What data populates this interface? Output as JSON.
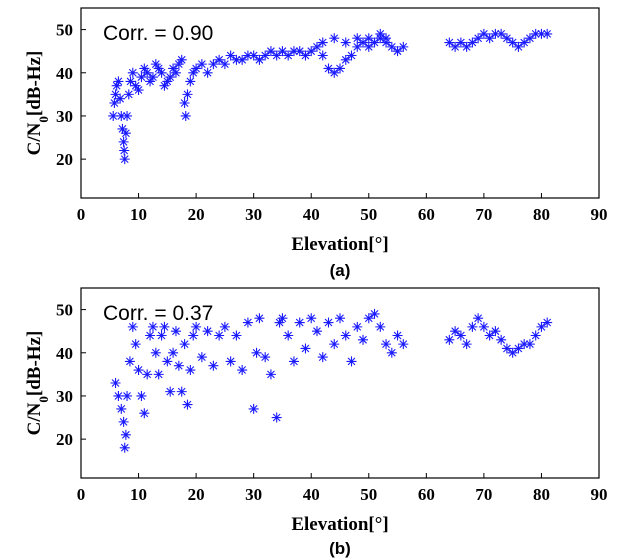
{
  "chart_data": [
    {
      "type": "scatter",
      "panel_label": "(a)",
      "annotation": "Corr. = 0.90",
      "xlabel": "Elevation[°]",
      "ylabel_main": "C/N",
      "ylabel_sub": "0",
      "ylabel_tail": "[dB-Hz]",
      "xlim": [
        0,
        90
      ],
      "ylim": [
        11,
        55
      ],
      "xticks": [
        0,
        10,
        20,
        30,
        40,
        50,
        60,
        70,
        80,
        90
      ],
      "yticks": [
        20,
        30,
        40,
        50
      ],
      "marker": "asterisk",
      "color": "#1a1aff",
      "points": [
        [
          5.6,
          30
        ],
        [
          5.8,
          33
        ],
        [
          6,
          35
        ],
        [
          6.2,
          37
        ],
        [
          6.5,
          38
        ],
        [
          6.8,
          34
        ],
        [
          7,
          30
        ],
        [
          7.2,
          27
        ],
        [
          7.4,
          24
        ],
        [
          7.5,
          22
        ],
        [
          7.6,
          20
        ],
        [
          7.8,
          26
        ],
        [
          8,
          30
        ],
        [
          8.3,
          35
        ],
        [
          8.6,
          38
        ],
        [
          9,
          40
        ],
        [
          9.5,
          37
        ],
        [
          10,
          36
        ],
        [
          10.5,
          39
        ],
        [
          11,
          41
        ],
        [
          11.5,
          40
        ],
        [
          12,
          38
        ],
        [
          12.5,
          39
        ],
        [
          13,
          42
        ],
        [
          13.5,
          41
        ],
        [
          14,
          40
        ],
        [
          14.5,
          37
        ],
        [
          15,
          38
        ],
        [
          15.5,
          39
        ],
        [
          16,
          41
        ],
        [
          16.5,
          40
        ],
        [
          17,
          42
        ],
        [
          17.5,
          43
        ],
        [
          18,
          33
        ],
        [
          18.2,
          30
        ],
        [
          18.5,
          35
        ],
        [
          19,
          38
        ],
        [
          19.5,
          40
        ],
        [
          20,
          41
        ],
        [
          21,
          42
        ],
        [
          22,
          40
        ],
        [
          23,
          42
        ],
        [
          24,
          43
        ],
        [
          25,
          42
        ],
        [
          26,
          44
        ],
        [
          27,
          43
        ],
        [
          28,
          43
        ],
        [
          29,
          44
        ],
        [
          30,
          44
        ],
        [
          31,
          43
        ],
        [
          32,
          44
        ],
        [
          33,
          45
        ],
        [
          34,
          44
        ],
        [
          35,
          45
        ],
        [
          36,
          44
        ],
        [
          37,
          45
        ],
        [
          38,
          45
        ],
        [
          39,
          44
        ],
        [
          40,
          45
        ],
        [
          41,
          46
        ],
        [
          42,
          44
        ],
        [
          43,
          41
        ],
        [
          44,
          40
        ],
        [
          45,
          41
        ],
        [
          46,
          43
        ],
        [
          47,
          44
        ],
        [
          48,
          46
        ],
        [
          49,
          47
        ],
        [
          50,
          46
        ],
        [
          51,
          47
        ],
        [
          52,
          48
        ],
        [
          53,
          47
        ],
        [
          54,
          46
        ],
        [
          55,
          45
        ],
        [
          56,
          46
        ],
        [
          42,
          47
        ],
        [
          44,
          48
        ],
        [
          46,
          47
        ],
        [
          48,
          48
        ],
        [
          50,
          48
        ],
        [
          52,
          49
        ],
        [
          53,
          48
        ],
        [
          64,
          47
        ],
        [
          65,
          46
        ],
        [
          66,
          47
        ],
        [
          67,
          46
        ],
        [
          68,
          47
        ],
        [
          69,
          48
        ],
        [
          70,
          49
        ],
        [
          71,
          48
        ],
        [
          72,
          49
        ],
        [
          73,
          49
        ],
        [
          74,
          48
        ],
        [
          75,
          47
        ],
        [
          76,
          46
        ],
        [
          77,
          47
        ],
        [
          78,
          48
        ],
        [
          79,
          49
        ],
        [
          80,
          49
        ],
        [
          81,
          49
        ]
      ]
    },
    {
      "type": "scatter",
      "panel_label": "(b)",
      "annotation": "Corr. = 0.37",
      "xlabel": "Elevation[°]",
      "ylabel_main": "C/N",
      "ylabel_sub": "0",
      "ylabel_tail": "[dB-Hz]",
      "xlim": [
        0,
        90
      ],
      "ylim": [
        11,
        55
      ],
      "xticks": [
        0,
        10,
        20,
        30,
        40,
        50,
        60,
        70,
        80,
        90
      ],
      "yticks": [
        20,
        30,
        40,
        50
      ],
      "marker": "asterisk",
      "color": "#1a1aff",
      "points": [
        [
          6,
          33
        ],
        [
          6.5,
          30
        ],
        [
          7,
          27
        ],
        [
          7.4,
          24
        ],
        [
          7.6,
          18
        ],
        [
          7.8,
          21
        ],
        [
          8,
          30
        ],
        [
          8.5,
          38
        ],
        [
          9,
          46
        ],
        [
          9.5,
          42
        ],
        [
          10,
          36
        ],
        [
          10.5,
          30
        ],
        [
          11,
          26
        ],
        [
          11.5,
          35
        ],
        [
          12,
          44
        ],
        [
          12.5,
          46
        ],
        [
          13,
          40
        ],
        [
          13.5,
          35
        ],
        [
          14,
          44
        ],
        [
          14.5,
          46
        ],
        [
          15,
          38
        ],
        [
          15.5,
          31
        ],
        [
          16,
          40
        ],
        [
          16.5,
          45
        ],
        [
          17,
          37
        ],
        [
          17.5,
          31
        ],
        [
          18,
          42
        ],
        [
          18.5,
          28
        ],
        [
          19,
          36
        ],
        [
          19.5,
          44
        ],
        [
          20,
          46
        ],
        [
          21,
          39
        ],
        [
          22,
          45
        ],
        [
          23,
          37
        ],
        [
          24,
          44
        ],
        [
          25,
          46
        ],
        [
          26,
          38
        ],
        [
          27,
          44
        ],
        [
          28,
          36
        ],
        [
          29,
          47
        ],
        [
          30,
          27
        ],
        [
          30.5,
          40
        ],
        [
          31,
          48
        ],
        [
          32,
          39
        ],
        [
          33,
          35
        ],
        [
          34,
          25
        ],
        [
          34.5,
          47
        ],
        [
          35,
          48
        ],
        [
          36,
          44
        ],
        [
          37,
          38
        ],
        [
          38,
          47
        ],
        [
          39,
          41
        ],
        [
          40,
          48
        ],
        [
          41,
          45
        ],
        [
          42,
          39
        ],
        [
          43,
          47
        ],
        [
          44,
          42
        ],
        [
          45,
          48
        ],
        [
          46,
          44
        ],
        [
          47,
          38
        ],
        [
          48,
          46
        ],
        [
          49,
          43
        ],
        [
          50,
          48
        ],
        [
          51,
          49
        ],
        [
          52,
          46
        ],
        [
          53,
          42
        ],
        [
          54,
          40
        ],
        [
          55,
          44
        ],
        [
          56,
          42
        ],
        [
          64,
          43
        ],
        [
          65,
          45
        ],
        [
          66,
          44
        ],
        [
          67,
          42
        ],
        [
          68,
          46
        ],
        [
          69,
          48
        ],
        [
          70,
          46
        ],
        [
          71,
          44
        ],
        [
          72,
          45
        ],
        [
          73,
          43
        ],
        [
          74,
          41
        ],
        [
          75,
          40
        ],
        [
          76,
          41
        ],
        [
          77,
          42
        ],
        [
          78,
          42
        ],
        [
          79,
          44
        ],
        [
          80,
          46
        ],
        [
          81,
          47
        ]
      ]
    }
  ]
}
